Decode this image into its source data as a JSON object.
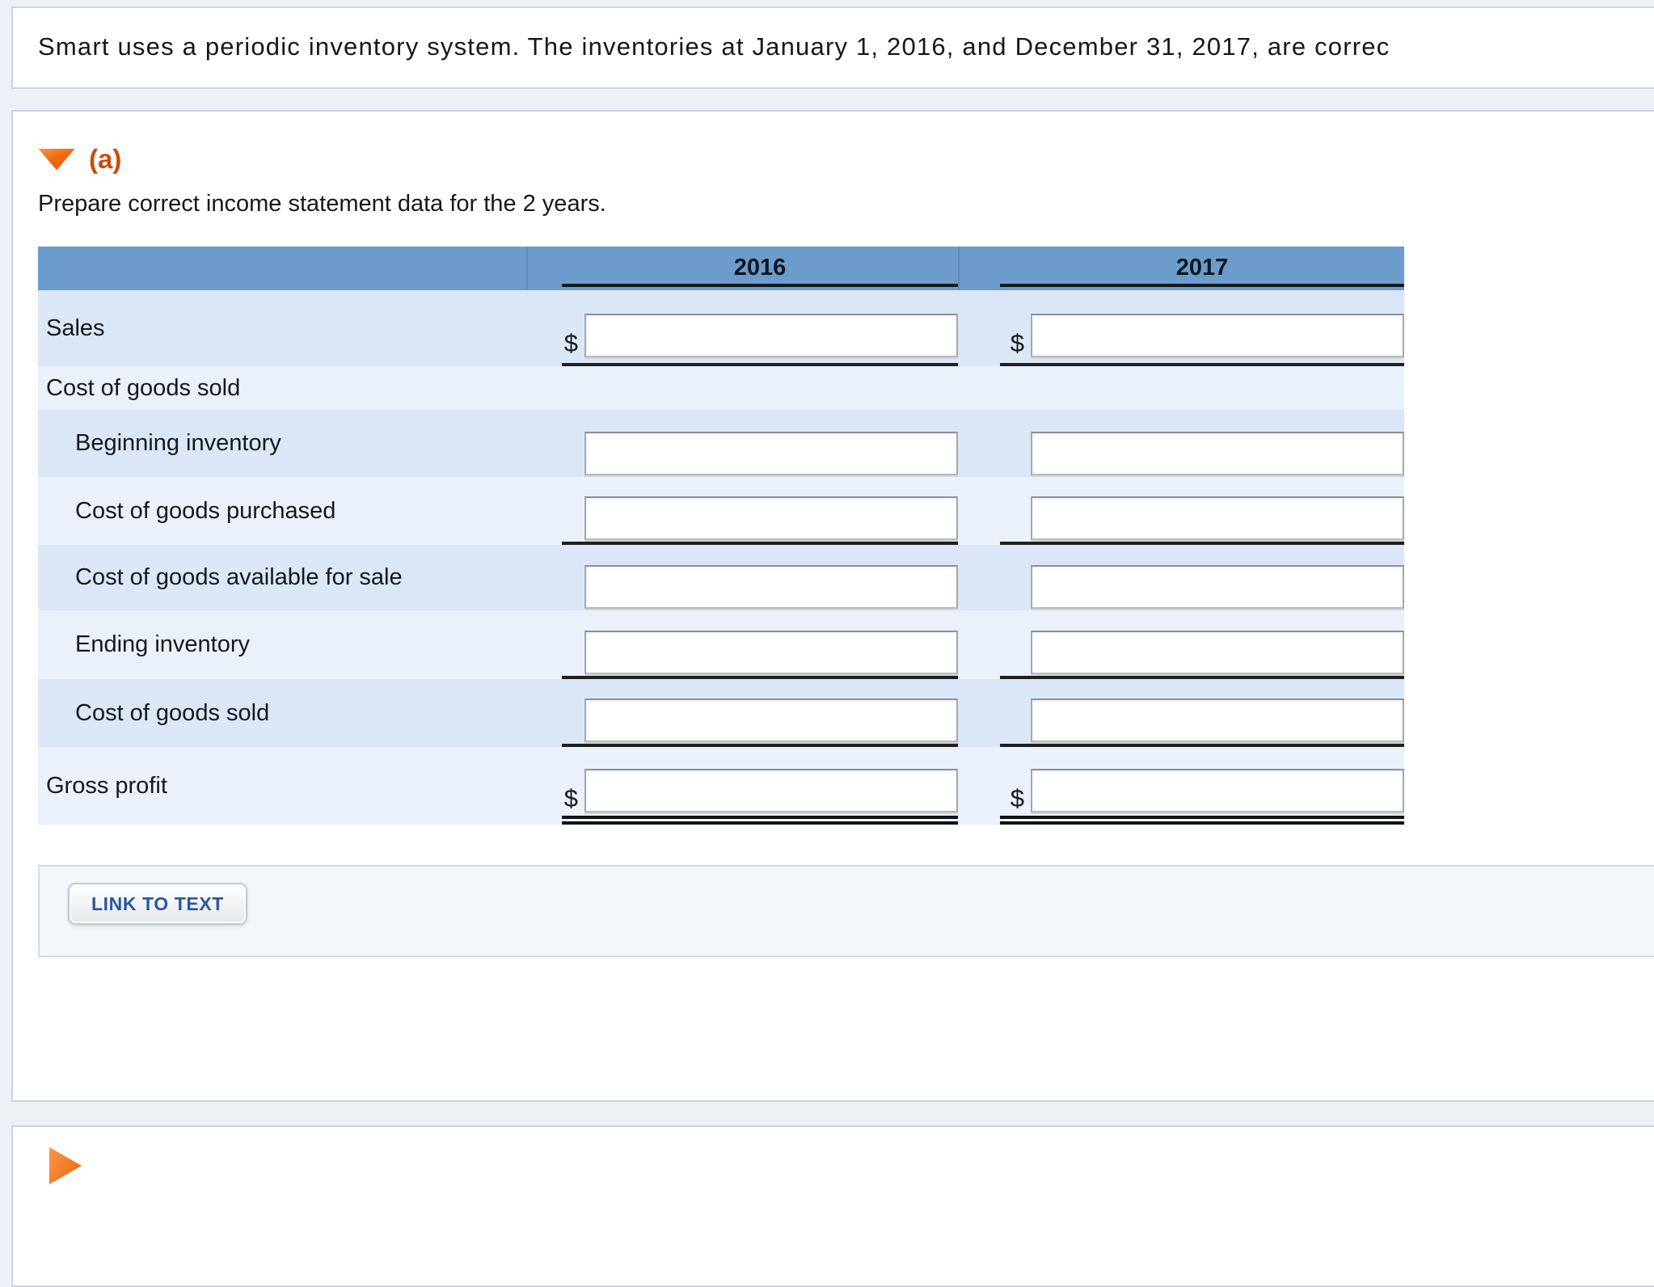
{
  "question": {
    "text": "Smart uses a periodic inventory system. The inventories at January 1, 2016, and December 31, 2017, are correc"
  },
  "section_a": {
    "expander_icon": "down-triangle-icon",
    "marker": "(a)",
    "instruction": "Prepare correct income statement data for the 2 years.",
    "link_button_label": "LINK TO TEXT"
  },
  "section_next": {
    "expander_icon": "right-triangle-icon"
  },
  "currency_symbol": "$",
  "income_table": {
    "column_headers": [
      "",
      "2016",
      "2017"
    ],
    "rows": [
      {
        "label": "Sales",
        "indent": false,
        "dollar_prefix": true,
        "underline": "single",
        "values": {
          "y2016": "",
          "y2017": ""
        },
        "placeholders": {
          "y2016": "",
          "y2017": ""
        }
      },
      {
        "label": "Cost of goods sold",
        "indent": false,
        "section_header": true
      },
      {
        "label": "Beginning inventory",
        "indent": true,
        "underline": "none",
        "values": {
          "y2016": "",
          "y2017": ""
        },
        "placeholders": {
          "y2016": "",
          "y2017": ""
        }
      },
      {
        "label": "Cost of goods purchased",
        "indent": true,
        "underline": "single",
        "values": {
          "y2016": "",
          "y2017": ""
        },
        "placeholders": {
          "y2016": "",
          "y2017": ""
        }
      },
      {
        "label": "Cost of goods available for sale",
        "indent": true,
        "underline": "none",
        "values": {
          "y2016": "",
          "y2017": ""
        },
        "placeholders": {
          "y2016": "",
          "y2017": ""
        }
      },
      {
        "label": "Ending inventory",
        "indent": true,
        "underline": "single",
        "values": {
          "y2016": "",
          "y2017": ""
        },
        "placeholders": {
          "y2016": "",
          "y2017": ""
        }
      },
      {
        "label": "Cost of goods sold",
        "indent": true,
        "underline": "single",
        "values": {
          "y2016": "",
          "y2017": ""
        },
        "placeholders": {
          "y2016": "",
          "y2017": ""
        }
      },
      {
        "label": "Gross profit",
        "indent": false,
        "dollar_prefix": true,
        "underline": "double",
        "values": {
          "y2016": "",
          "y2017": ""
        },
        "placeholders": {
          "y2016": "",
          "y2017": ""
        }
      }
    ]
  },
  "colors": {
    "table_header_blue": "#6B9CCB",
    "row_shade_dark": "#DBE7F6",
    "row_shade_light": "#EAF1FB",
    "accent_orange": "#F1680B",
    "section_marker_orange": "#CE4A08",
    "button_text_blue": "#2A57A5",
    "underline_black": "#1F1F1F",
    "page_background": "#EDF1F6"
  }
}
